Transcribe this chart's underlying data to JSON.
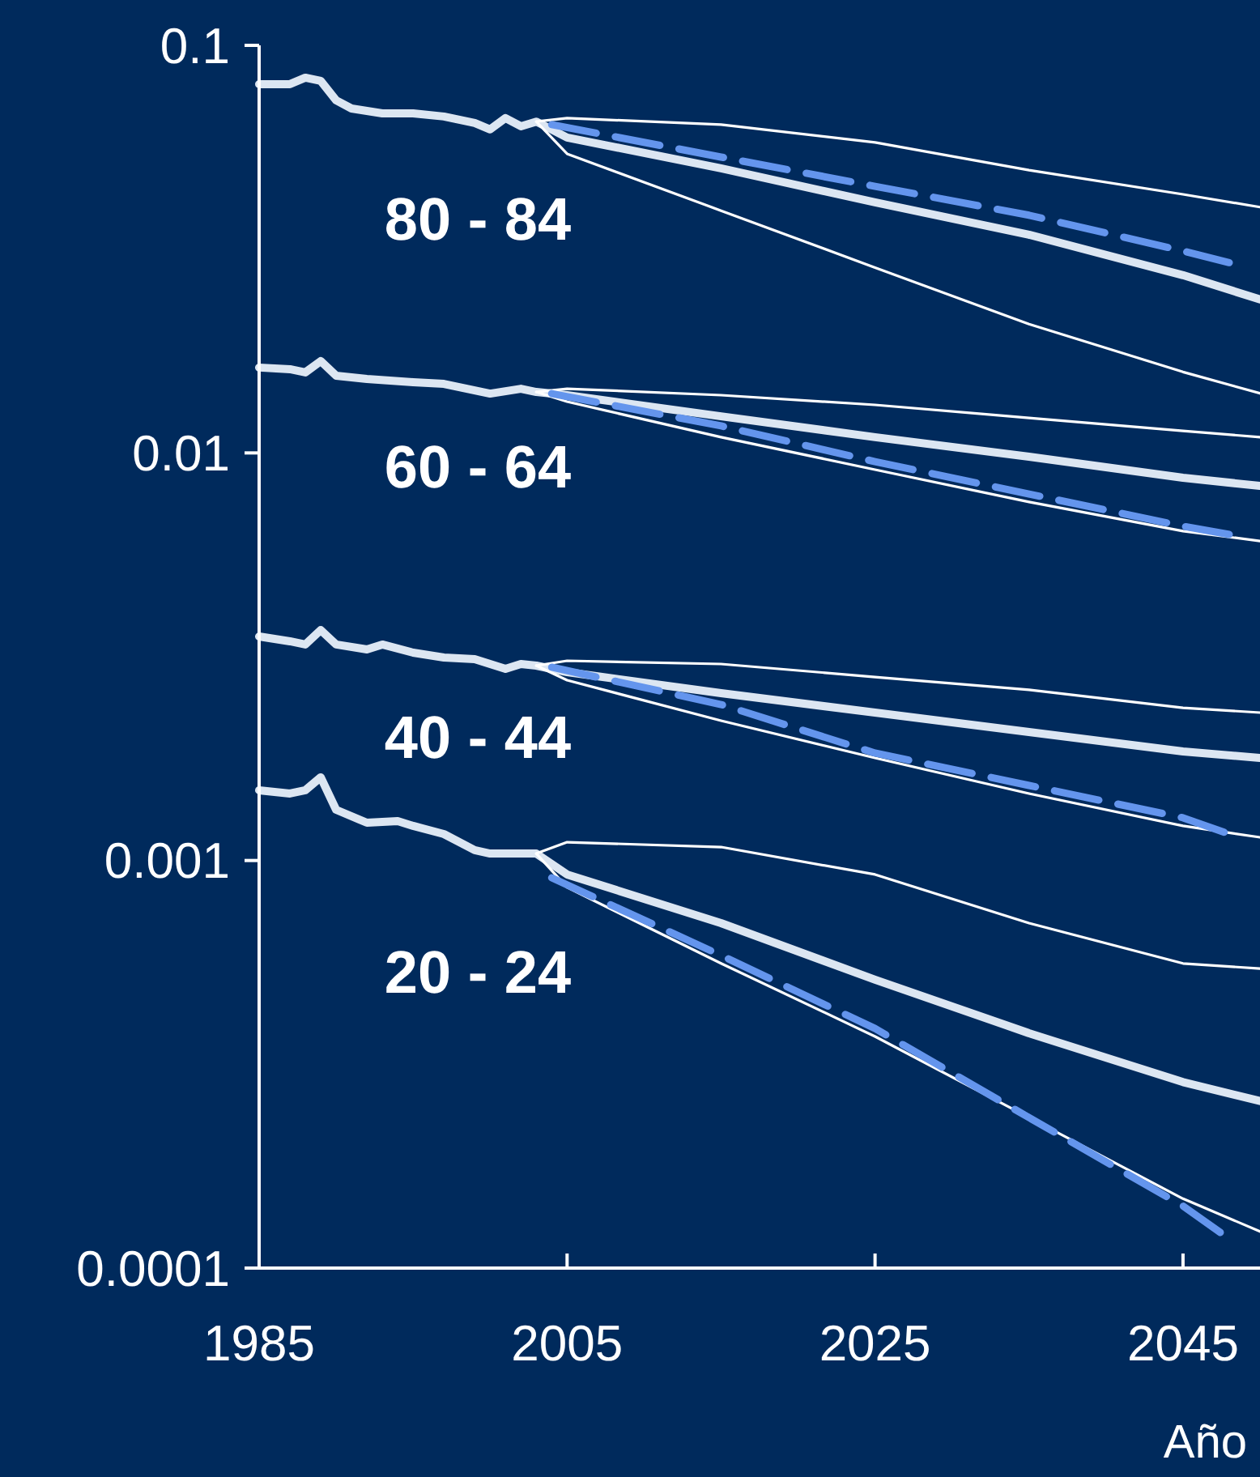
{
  "chart_data": {
    "type": "line",
    "xlabel": "Año",
    "log": true,
    "xlim": [
      1985,
      2050
    ],
    "xticks": [
      1985,
      2005,
      2025,
      2045
    ],
    "ylim": [
      0.0001,
      0.1
    ],
    "yticks": [
      0.0001,
      0.001,
      0.01,
      0.1
    ],
    "annotations": [
      "80 - 84",
      "60 - 64",
      "40 - 44",
      "20 - 24"
    ],
    "series": [
      {
        "color": "#dce6f2",
        "x": [
          1985,
          1987,
          1988,
          1989,
          1990,
          1991,
          1993,
          1995,
          1997,
          1999,
          2000,
          2001,
          2002,
          2003,
          2005,
          2015,
          2025,
          2035,
          2045,
          2050
        ],
        "values": [
          0.0803,
          0.0803,
          0.0833,
          0.0818,
          0.0733,
          0.07,
          0.0681,
          0.0681,
          0.0669,
          0.0645,
          0.0622,
          0.0663,
          0.0633,
          0.065,
          0.0594,
          0.0499,
          0.0412,
          0.0343,
          0.0273,
          0.0238
        ]
      },
      {
        "color": "#ffffff",
        "x": [
          2003,
          2005,
          2015,
          2025,
          2035,
          2045,
          2050
        ],
        "values": [
          0.065,
          0.0663,
          0.0639,
          0.0578,
          0.0494,
          0.0431,
          0.0401
        ]
      },
      {
        "color": "#ffffff",
        "x": [
          2003,
          2005,
          2015,
          2025,
          2035,
          2045,
          2050
        ],
        "values": [
          0.065,
          0.0542,
          0.0393,
          0.0285,
          0.0207,
          0.0158,
          0.014
        ]
      },
      {
        "color": "#6495ed",
        "line_style": "dashed",
        "x": [
          2004,
          2015,
          2025,
          2035,
          2045,
          2048
        ],
        "values": [
          0.0639,
          0.0532,
          0.0451,
          0.0383,
          0.0313,
          0.0293
        ]
      },
      {
        "color": "#dce6f2",
        "x": [
          1985,
          1987,
          1988,
          1989,
          1990,
          1992,
          1995,
          1997,
          2000,
          2002,
          2003,
          2005,
          2015,
          2025,
          2035,
          2045,
          2050
        ],
        "values": [
          0.0162,
          0.01605,
          0.01576,
          0.0168,
          0.01547,
          0.01518,
          0.01491,
          0.01477,
          0.01398,
          0.01437,
          0.01411,
          0.01386,
          0.0123,
          0.01093,
          0.00979,
          0.00869,
          0.0083
        ]
      },
      {
        "color": "#ffffff",
        "x": [
          2003,
          2005,
          2015,
          2025,
          2035,
          2045,
          2050
        ],
        "values": [
          0.01411,
          0.01437,
          0.01386,
          0.01312,
          0.01219,
          0.01133,
          0.01093
        ]
      },
      {
        "color": "#ffffff",
        "x": [
          2003,
          2005,
          2015,
          2025,
          2035,
          2045,
          2050
        ],
        "values": [
          0.01411,
          0.01336,
          0.01093,
          0.0091,
          0.00758,
          0.00643,
          0.00608
        ]
      },
      {
        "color": "#6495ed",
        "line_style": "dashed",
        "x": [
          2004,
          2015,
          2025,
          2035,
          2045,
          2048
        ],
        "values": [
          0.01398,
          0.01165,
          0.00952,
          0.00793,
          0.00661,
          0.00631
        ]
      },
      {
        "color": "#dce6f2",
        "x": [
          1985,
          1987,
          1988,
          1989,
          1990,
          1992,
          1993,
          1995,
          1997,
          1999,
          2001,
          2002,
          2003,
          2005,
          2015,
          2025,
          2035,
          2045,
          2050
        ],
        "values": [
          0.003546,
          0.00345,
          0.003388,
          0.003677,
          0.003388,
          0.003296,
          0.003388,
          0.003236,
          0.003148,
          0.003119,
          0.002952,
          0.003035,
          0.003007,
          0.002899,
          0.002574,
          0.002306,
          0.002066,
          0.001852,
          0.001785
        ]
      },
      {
        "color": "#ffffff",
        "x": [
          2003,
          2005,
          2015,
          2025,
          2035,
          2045,
          2050
        ],
        "values": [
          0.003007,
          0.003091,
          0.003035,
          0.00282,
          0.002622,
          0.00237,
          0.002306
        ]
      },
      {
        "color": "#ffffff",
        "x": [
          2003,
          2005,
          2015,
          2025,
          2035,
          2045,
          2050
        ],
        "values": [
          0.003007,
          0.002769,
          0.002203,
          0.001785,
          0.00146,
          0.001216,
          0.00114
        ]
      },
      {
        "color": "#6495ed",
        "line_style": "dashed",
        "x": [
          2004,
          2015,
          2025,
          2035,
          2045,
          2048
        ],
        "values": [
          0.00298,
          0.002414,
          0.001835,
          0.001528,
          0.001273,
          0.001161
        ]
      },
      {
        "color": "#dce6f2",
        "x": [
          1985,
          1987,
          1988,
          1989,
          1990,
          1992,
          1994,
          1995,
          1997,
          1999,
          2000,
          2003,
          2005,
          2015,
          2025,
          2035,
          2045,
          2050
        ],
        "values": [
          0.001487,
          0.00146,
          0.001487,
          0.0016,
          0.001332,
          0.001238,
          0.001249,
          0.001216,
          0.001161,
          0.00106,
          0.00104,
          0.00104,
          0.000924,
          0.000702,
          0.00051,
          0.000377,
          0.000286,
          0.000257
        ]
      },
      {
        "color": "#ffffff",
        "x": [
          2003,
          2005,
          2015,
          2025,
          2035,
          2045,
          2050
        ],
        "values": [
          0.00104,
          0.001109,
          0.001079,
          0.000924,
          0.000702,
          0.000559,
          0.000543
        ]
      },
      {
        "color": "#ffffff",
        "x": [
          2003,
          2005,
          2015,
          2025,
          2035,
          2045,
          2050
        ],
        "values": [
          0.00104,
          0.000859,
          0.000559,
          0.00037,
          0.000234,
          0.000148,
          0.000123
        ]
      },
      {
        "color": "#6495ed",
        "line_style": "dashed",
        "x": [
          2004,
          2015,
          2025,
          2035,
          2045,
          2048
        ],
        "values": [
          0.000907,
          0.000585,
          0.000387,
          0.000234,
          0.000142,
          0.000118
        ]
      }
    ]
  }
}
